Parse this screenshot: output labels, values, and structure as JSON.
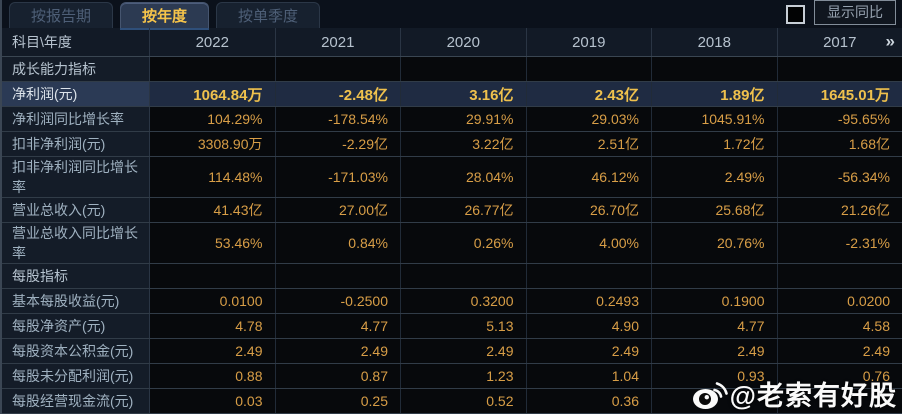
{
  "tabs": {
    "report_period": "按报告期",
    "annual": "按年度",
    "single_quarter": "按单季度"
  },
  "controls": {
    "show_yoy_label": "显示同比"
  },
  "table": {
    "corner_label": "科目\\年度",
    "years": [
      "2022",
      "2021",
      "2020",
      "2019",
      "2018",
      "2017"
    ],
    "more_icon": "»",
    "rows": [
      {
        "type": "section",
        "label": "成长能力指标",
        "values": [
          "",
          "",
          "",
          "",
          "",
          ""
        ]
      },
      {
        "type": "highlight",
        "label": "净利润(元)",
        "values": [
          "1064.84万",
          "-2.48亿",
          "3.16亿",
          "2.43亿",
          "1.89亿",
          "1645.01万"
        ]
      },
      {
        "type": "data",
        "label": "净利润同比增长率",
        "values": [
          "104.29%",
          "-178.54%",
          "29.91%",
          "29.03%",
          "1045.91%",
          "-95.65%"
        ]
      },
      {
        "type": "data",
        "label": "扣非净利润(元)",
        "values": [
          "3308.90万",
          "-2.29亿",
          "3.22亿",
          "2.51亿",
          "1.72亿",
          "1.68亿"
        ]
      },
      {
        "type": "data",
        "label": "扣非净利润同比增长率",
        "values": [
          "114.48%",
          "-171.03%",
          "28.04%",
          "46.12%",
          "2.49%",
          "-56.34%"
        ]
      },
      {
        "type": "data",
        "label": "营业总收入(元)",
        "values": [
          "41.43亿",
          "27.00亿",
          "26.77亿",
          "26.70亿",
          "25.68亿",
          "21.26亿"
        ]
      },
      {
        "type": "data",
        "label": "营业总收入同比增长率",
        "values": [
          "53.46%",
          "0.84%",
          "0.26%",
          "4.00%",
          "20.76%",
          "-2.31%"
        ]
      },
      {
        "type": "section",
        "label": "每股指标",
        "values": [
          "",
          "",
          "",
          "",
          "",
          ""
        ]
      },
      {
        "type": "data",
        "label": "基本每股收益(元)",
        "values": [
          "0.0100",
          "-0.2500",
          "0.3200",
          "0.2493",
          "0.1900",
          "0.0200"
        ]
      },
      {
        "type": "data",
        "label": "每股净资产(元)",
        "values": [
          "4.78",
          "4.77",
          "5.13",
          "4.90",
          "4.77",
          "4.58"
        ]
      },
      {
        "type": "data",
        "label": "每股资本公积金(元)",
        "values": [
          "2.49",
          "2.49",
          "2.49",
          "2.49",
          "2.49",
          "2.49"
        ]
      },
      {
        "type": "data",
        "label": "每股未分配利润(元)",
        "values": [
          "0.88",
          "0.87",
          "1.23",
          "1.04",
          "0.93",
          "0.76"
        ]
      },
      {
        "type": "data",
        "label": "每股经营现金流(元)",
        "values": [
          "0.03",
          "0.25",
          "0.52",
          "0.36",
          "",
          ""
        ]
      }
    ]
  },
  "watermark": {
    "handle": "@老索有好股"
  },
  "colors": {
    "accent_gold": "#f6c44a",
    "value_orange": "#d89e47",
    "highlight_row_bg": "#1f2b42",
    "header_bg": "#121a26",
    "label_col_bg": "#141c28",
    "cell_bg": "#07090c"
  }
}
